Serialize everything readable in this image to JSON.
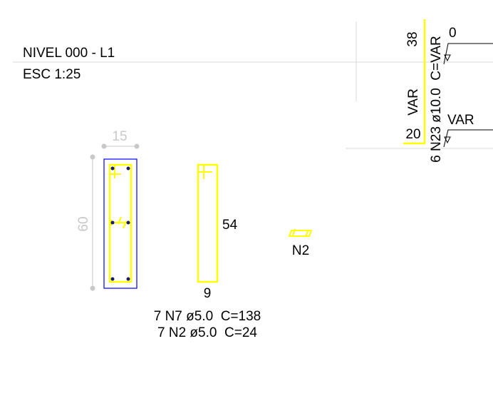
{
  "title": {
    "level": "NIVEL 000 - L1",
    "scale": "ESC 1:25"
  },
  "section": {
    "width": "15",
    "height": "60"
  },
  "stirrup": {
    "height": "54",
    "width": "9"
  },
  "hook": {
    "label": "N2"
  },
  "schedule": {
    "line1": "7 N7 ø5.0  C=138",
    "line2": "7 N2 ø5.0  C=24"
  },
  "bar_n23": {
    "top_length": "38",
    "side_length": "VAR",
    "bottom_length": "20",
    "spec": "6 N23 ø10.0  C=VAR",
    "level_top": "0",
    "level_bottom": "VAR"
  },
  "colors": {
    "bar": "#ffff00",
    "section_outline": "#0000ff",
    "dimension": "#c8c8c8",
    "grid_line": "#d8d8d8",
    "text": "#000000"
  }
}
